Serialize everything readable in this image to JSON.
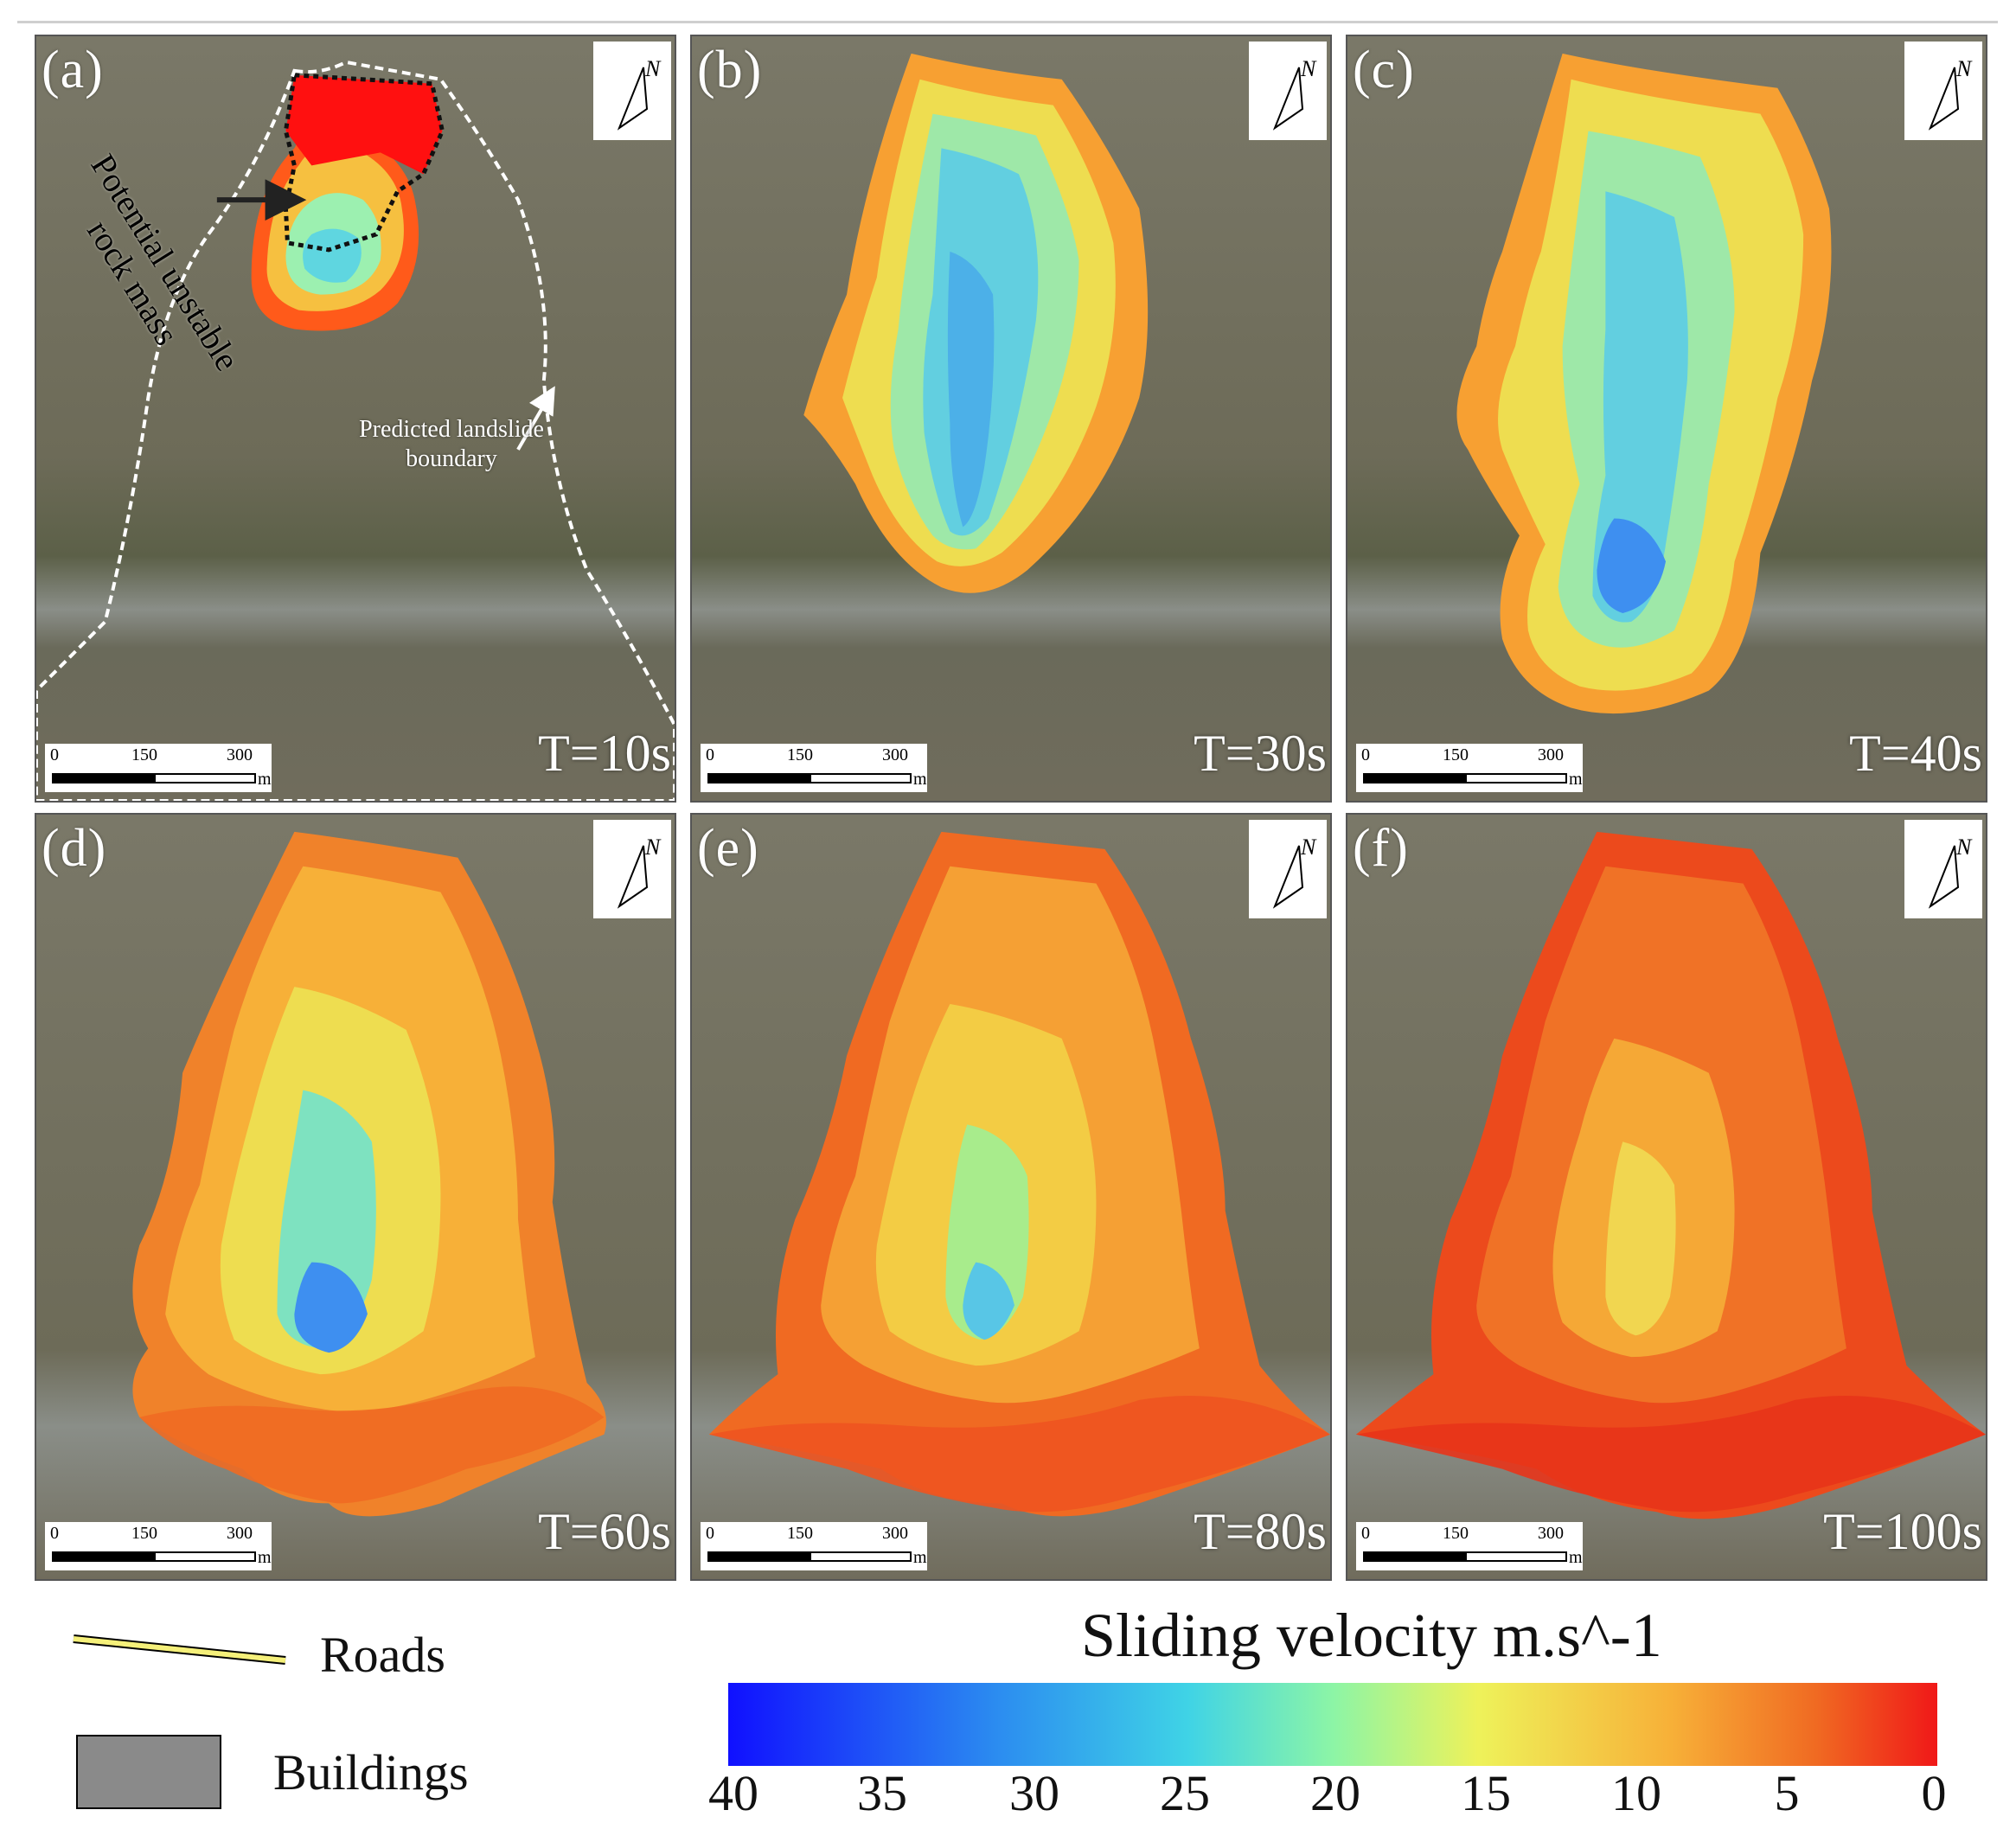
{
  "panels": [
    {
      "label": "(a)",
      "time": "T=10s"
    },
    {
      "label": "(b)",
      "time": "T=30s"
    },
    {
      "label": "(c)",
      "time": "T=40s"
    },
    {
      "label": "(d)",
      "time": "T=60s"
    },
    {
      "label": "(e)",
      "time": "T=80s"
    },
    {
      "label": "(f)",
      "time": "T=100s"
    }
  ],
  "annotations": {
    "unstable_mass": "Potential unstable rock mass",
    "boundary_line1": "Predicted landslide",
    "boundary_line2": "boundary"
  },
  "scale_bar": {
    "tick0": "0",
    "tick1": "150",
    "tick2": "300",
    "unit": "m"
  },
  "north_arrow": {
    "label": "N",
    "icon": "north-arrow-icon"
  },
  "legend": {
    "roads": "Roads",
    "buildings": "Buildings",
    "road_color": "#f5f07a",
    "building_color": "#8a8a8a"
  },
  "colorbar": {
    "title": "Sliding velocity m.s^-1",
    "ticks": [
      "40",
      "35",
      "30",
      "25",
      "20",
      "15",
      "10",
      "5",
      "0"
    ],
    "colors": [
      "#1010ff",
      "#3fd3e6",
      "#eef25a",
      "#f7b038",
      "#f01818"
    ]
  }
}
